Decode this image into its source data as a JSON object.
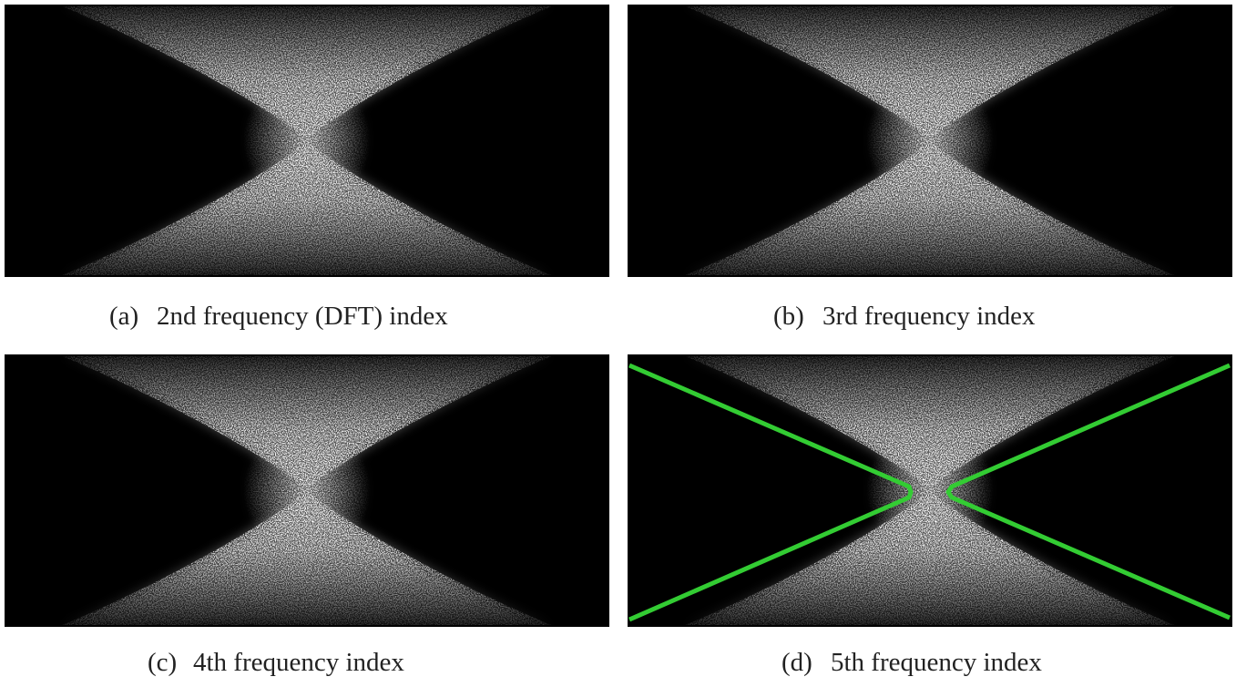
{
  "panels": [
    {
      "label": "(a)",
      "text": "2nd frequency (DFT) index"
    },
    {
      "label": "(b)",
      "text": "3rd frequency index"
    },
    {
      "label": "(c)",
      "text": "4th frequency index"
    },
    {
      "label": "(d)",
      "text": "5th frequency index"
    }
  ]
}
